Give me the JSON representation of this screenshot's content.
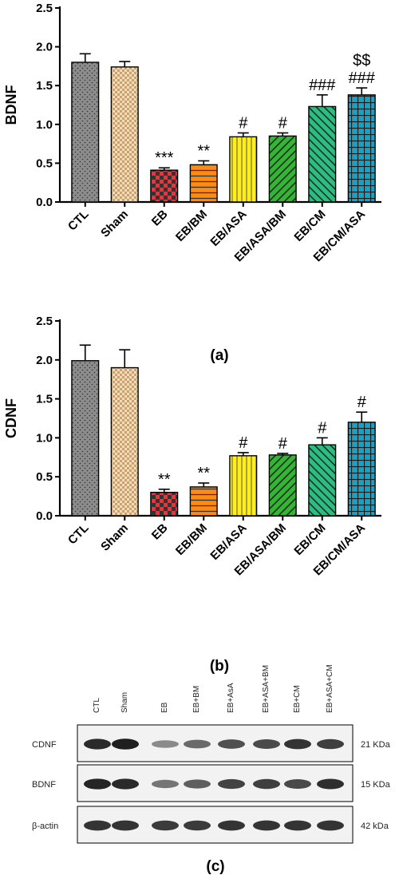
{
  "panels": [
    {
      "label": "(a)",
      "chart_data": {
        "type": "bar",
        "ylabel": "BDNF",
        "ylim": [
          0,
          2.5
        ],
        "yticks": [
          "0.0",
          "0.5",
          "1.0",
          "1.5",
          "2.0",
          "2.5"
        ],
        "categories": [
          "CTL",
          "Sham",
          "EB",
          "EB/BM",
          "EB/ASA",
          "EB/ASA/BM",
          "EB/CM",
          "EB/CM/ASA"
        ],
        "values": [
          1.8,
          1.74,
          0.41,
          0.48,
          0.84,
          0.85,
          1.23,
          1.38
        ],
        "errors": [
          0.11,
          0.07,
          0.03,
          0.05,
          0.05,
          0.04,
          0.15,
          0.09
        ],
        "annotations": [
          [],
          [],
          [
            "***"
          ],
          [
            "**"
          ],
          [
            "#"
          ],
          [
            "#"
          ],
          [
            "###"
          ],
          [
            "###",
            "$$"
          ]
        ],
        "colors": [
          "#8c8c8c",
          "#f3dcb8",
          "#e8343a",
          "#ff8a12",
          "#ffee1a",
          "#35b535",
          "#2cbd82",
          "#1aa0c2"
        ],
        "grid": false
      }
    },
    {
      "label": "(b)",
      "chart_data": {
        "type": "bar",
        "ylabel": "CDNF",
        "ylim": [
          0,
          2.5
        ],
        "yticks": [
          "0.0",
          "0.5",
          "1.0",
          "1.5",
          "2.0",
          "2.5"
        ],
        "categories": [
          "CTL",
          "Sham",
          "EB",
          "EB/BM",
          "EB/ASA",
          "EB/ASA/BM",
          "EB/CM",
          "EB/CM/ASA"
        ],
        "values": [
          1.99,
          1.9,
          0.3,
          0.37,
          0.77,
          0.78,
          0.91,
          1.2
        ],
        "errors": [
          0.2,
          0.23,
          0.04,
          0.05,
          0.04,
          0.02,
          0.09,
          0.13
        ],
        "annotations": [
          [],
          [],
          [
            "**"
          ],
          [
            "**"
          ],
          [
            "#"
          ],
          [
            "#"
          ],
          [
            "#"
          ],
          [
            "#"
          ]
        ],
        "colors": [
          "#8c8c8c",
          "#f3dcb8",
          "#e8343a",
          "#ff8a12",
          "#ffee1a",
          "#35b535",
          "#2cbd82",
          "#1aa0c2"
        ],
        "grid": false
      }
    }
  ],
  "blot": {
    "label": "(c)",
    "lanes": [
      "CTL",
      "Sham",
      "EB",
      "EB+BM",
      "EB+AsA",
      "EB+ASA+BM",
      "EB+CM",
      "EB+ASA+CM"
    ],
    "rows": [
      {
        "name": "CDNF",
        "size": "21 KDa",
        "intensity": [
          0.9,
          0.95,
          0.45,
          0.6,
          0.72,
          0.75,
          0.85,
          0.8
        ]
      },
      {
        "name": "BDNF",
        "size": "15 KDa",
        "intensity": [
          0.92,
          0.9,
          0.55,
          0.65,
          0.78,
          0.8,
          0.75,
          0.88
        ]
      },
      {
        "name": "β-actin",
        "size": "42 kDa",
        "intensity": [
          0.85,
          0.85,
          0.82,
          0.82,
          0.85,
          0.85,
          0.85,
          0.85
        ]
      }
    ]
  }
}
